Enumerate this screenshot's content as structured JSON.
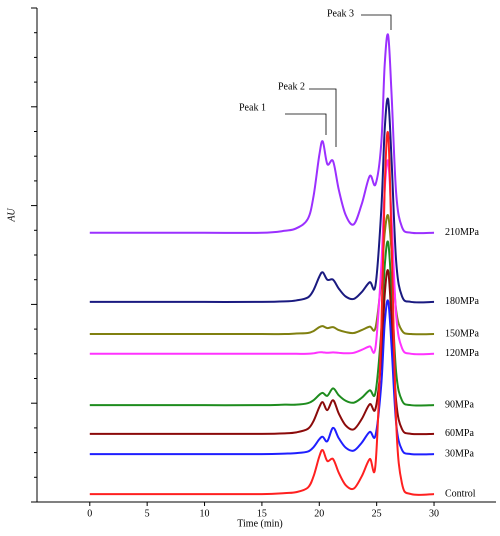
{
  "chart_data": {
    "type": "line",
    "xlabel": "Time (min)",
    "ylabel": "AU",
    "xlim": [
      -4.6,
      35.4
    ],
    "xticks": [
      0,
      5,
      10,
      15,
      20,
      25,
      30
    ],
    "ylim": [
      0,
      100
    ],
    "yticks": [
      0,
      5,
      10,
      15,
      20,
      25,
      30,
      35,
      40,
      45,
      50,
      55,
      60,
      65,
      70,
      75,
      80,
      85,
      90,
      95,
      100
    ],
    "annotations": [
      "Peak 1",
      "Peak 2",
      "Peak 3"
    ],
    "x": [
      0,
      5,
      10,
      15,
      17,
      18,
      19,
      19.5,
      20,
      20.3,
      20.7,
      21.2,
      21.7,
      22.3,
      23,
      23.7,
      24.4,
      24.9,
      25.4,
      25.7,
      26,
      26.3,
      26.7,
      27.2,
      28,
      30
    ],
    "series": [
      {
        "name": "210MPa",
        "color": "#9b30ff",
        "values": [
          54.5,
          54.5,
          54.5,
          54.5,
          54.9,
          55.4,
          57.3,
          61.9,
          70.2,
          73.0,
          68.4,
          69.0,
          63.2,
          58.1,
          56.2,
          60.3,
          66.0,
          64.3,
          72.5,
          88.5,
          94.5,
          82.5,
          62.5,
          55.7,
          54.5,
          54.5
        ]
      },
      {
        "name": "180MPa",
        "color": "#1a1a80",
        "values": [
          40.5,
          40.5,
          40.5,
          40.5,
          40.6,
          40.8,
          41.4,
          42.9,
          45.6,
          46.5,
          45.0,
          45.0,
          43.2,
          41.6,
          41.1,
          42.5,
          44.5,
          43.9,
          59.0,
          75.4,
          81.5,
          69.2,
          48.7,
          41.7,
          40.5,
          40.5
        ]
      },
      {
        "name": "150MPa",
        "color": "#808010",
        "values": [
          34,
          34,
          34,
          34,
          34.0,
          34.1,
          34.2,
          34.6,
          35.4,
          35.6,
          35.2,
          35.4,
          34.8,
          34.4,
          34.2,
          34.8,
          35.5,
          35.3,
          44.8,
          54.4,
          58.0,
          50.8,
          38.8,
          34.7,
          34,
          34
        ]
      },
      {
        "name": "120MPa",
        "color": "#ff33ff",
        "values": [
          30,
          30,
          30,
          30,
          30.0,
          30.0,
          30.0,
          30.1,
          30.3,
          30.3,
          30.2,
          30.3,
          30.2,
          30.1,
          30.2,
          30.8,
          31.5,
          31.3,
          47.6,
          63.2,
          69.0,
          57.3,
          37.8,
          31.2,
          30,
          30
        ]
      },
      {
        "name": "90MPa",
        "color": "#1e8c1e",
        "values": [
          19.6,
          19.6,
          19.6,
          19.6,
          19.7,
          19.7,
          20.0,
          20.6,
          21.7,
          22.1,
          21.5,
          23.0,
          21.6,
          20.5,
          20.1,
          21.1,
          22.6,
          22.2,
          34.5,
          47.7,
          52.6,
          42.7,
          26.2,
          20.6,
          19.6,
          19.6
        ]
      },
      {
        "name": "60MPa",
        "color": "#8b0a0a",
        "values": [
          13.8,
          13.8,
          13.8,
          13.8,
          13.9,
          14.1,
          14.8,
          16.4,
          19.2,
          20.2,
          18.6,
          20.6,
          17.9,
          15.5,
          14.7,
          16.8,
          19.8,
          18.9,
          28.7,
          41.9,
          46.8,
          36.9,
          20.4,
          14.8,
          13.8,
          13.8
        ]
      },
      {
        "name": "30MPa",
        "color": "#1f1fff",
        "values": [
          9.7,
          9.7,
          9.7,
          9.7,
          9.8,
          9.9,
          10.2,
          11.1,
          12.7,
          13.2,
          12.3,
          15.0,
          12.9,
          11.0,
          10.4,
          12.0,
          14.2,
          13.5,
          23.7,
          36.1,
          40.7,
          31.4,
          15.9,
          10.6,
          9.7,
          9.7
        ]
      },
      {
        "name": "Control",
        "color": "#ff2020",
        "values": [
          1.6,
          1.6,
          1.6,
          1.6,
          1.8,
          2.0,
          2.9,
          5.2,
          9.2,
          10.5,
          8.3,
          8.7,
          5.9,
          3.4,
          2.7,
          5.2,
          8.7,
          7.6,
          34.5,
          63.7,
          74.6,
          52.7,
          16.2,
          3.8,
          1.6,
          1.6
        ]
      }
    ]
  }
}
